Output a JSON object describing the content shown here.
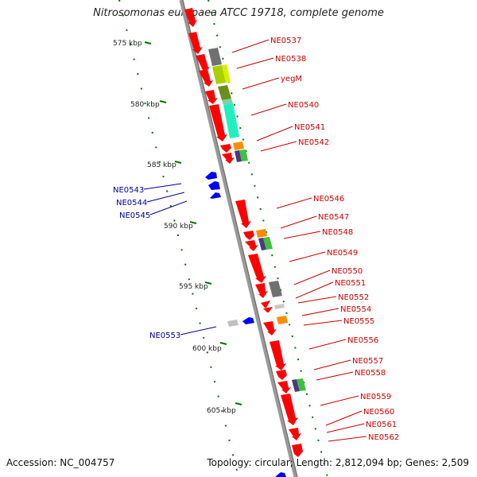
{
  "title": "Nitrosomonas europaea ATCC 19718, complete genome",
  "footer": {
    "accession": "Accession: NC_004757",
    "summary": "Topology: circular; Length: 2,812,094 bp; Genes: 2,509"
  },
  "colors": {
    "forward_gene": "#ff0000",
    "reverse_gene": "#0000ff",
    "forward_label": "#cc0000",
    "reverse_label": "#000099",
    "tick": "#007700",
    "backbone": "#999999"
  },
  "scale_marks": [
    {
      "kbp": 575,
      "label": "575 kbp"
    },
    {
      "kbp": 580,
      "label": "580 kbp"
    },
    {
      "kbp": 585,
      "label": "585 kbp"
    },
    {
      "kbp": 590,
      "label": "590 kbp"
    },
    {
      "kbp": 595,
      "label": "595 kbp"
    },
    {
      "kbp": 600,
      "label": "600 kbp"
    },
    {
      "kbp": 605,
      "label": "605 kbp"
    }
  ],
  "forward_genes": [
    "NE0537",
    "NE0538",
    "yegM",
    "NE0540",
    "NE0541",
    "NE0542",
    "NE0546",
    "NE0547",
    "NE0548",
    "NE0549",
    "NE0550",
    "NE0551",
    "NE0552",
    "NE0554",
    "NE0555",
    "NE0556",
    "NE0557",
    "NE0558",
    "NE0559",
    "NE0560",
    "NE0561",
    "NE0562"
  ],
  "reverse_genes": [
    "NE0543",
    "NE0544",
    "NE0545",
    "NE0553"
  ]
}
